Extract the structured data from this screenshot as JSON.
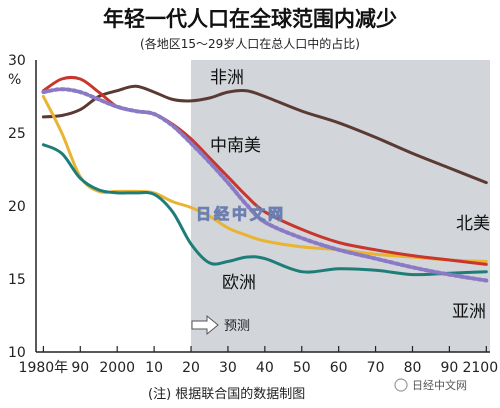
{
  "title": "年轻一代人口在全球范围内减少",
  "subtitle": "(各地区15～29岁人口在总人口中的占比)",
  "y_unit": "%",
  "note": "(注) 根据联合国的数据制图",
  "forecast_label": "预测",
  "watermark": "日经中文网",
  "source_badge": "日经中文网",
  "colors": {
    "africa": "#5a3a32",
    "latin_america": "#c8362c",
    "north_america": "#e8b431",
    "asia": "#8a79c4",
    "europe": "#1f7d78",
    "forecast_shade": "#d2d5da"
  },
  "chart_data": {
    "type": "line",
    "title": "年轻一代人口在全球范围内减少",
    "subtitle": "(各地区15～29岁人口在总人口中的占比)",
    "ylabel": "%",
    "xlim": [
      1978,
      2101
    ],
    "ylim": [
      10,
      30
    ],
    "x_ticks": [
      1980,
      1990,
      2000,
      2010,
      2020,
      2030,
      2040,
      2050,
      2060,
      2070,
      2080,
      2090,
      2100
    ],
    "x_tick_labels": [
      "1980年",
      "90",
      "2000",
      "10",
      "20",
      "30",
      "40",
      "50",
      "60",
      "70",
      "80",
      "90",
      "2100"
    ],
    "y_ticks": [
      10,
      15,
      20,
      25,
      30
    ],
    "forecast_start": 2020,
    "grid": false,
    "series": [
      {
        "name": "非洲",
        "color_key": "africa",
        "x": [
          1980,
          1985,
          1990,
          1995,
          2000,
          2005,
          2010,
          2015,
          2020,
          2025,
          2030,
          2035,
          2040,
          2050,
          2060,
          2070,
          2080,
          2090,
          2100
        ],
        "y": [
          26.1,
          26.2,
          26.6,
          27.5,
          27.9,
          28.2,
          27.8,
          27.3,
          27.2,
          27.4,
          27.8,
          27.9,
          27.5,
          26.5,
          25.7,
          24.7,
          23.6,
          22.6,
          21.6
        ]
      },
      {
        "name": "中南美",
        "color_key": "latin_america",
        "x": [
          1980,
          1985,
          1990,
          1995,
          2000,
          2005,
          2010,
          2015,
          2020,
          2025,
          2030,
          2035,
          2040,
          2050,
          2060,
          2070,
          2080,
          2090,
          2100
        ],
        "y": [
          27.9,
          28.7,
          28.7,
          27.8,
          26.8,
          26.5,
          26.3,
          25.6,
          24.6,
          23.3,
          22.0,
          20.7,
          19.6,
          18.4,
          17.5,
          17.0,
          16.6,
          16.3,
          16.0
        ]
      },
      {
        "name": "北美",
        "color_key": "north_america",
        "x": [
          1980,
          1985,
          1990,
          1995,
          2000,
          2005,
          2010,
          2015,
          2020,
          2025,
          2030,
          2035,
          2040,
          2050,
          2060,
          2070,
          2080,
          2090,
          2100
        ],
        "y": [
          27.5,
          25.0,
          22.0,
          21.0,
          21.0,
          21.0,
          20.9,
          20.3,
          19.9,
          19.3,
          18.5,
          18.0,
          17.6,
          17.2,
          17.0,
          16.7,
          16.5,
          16.3,
          16.2
        ]
      },
      {
        "name": "亚洲",
        "color_key": "asia",
        "x": [
          1980,
          1985,
          1990,
          1995,
          2000,
          2005,
          2010,
          2015,
          2020,
          2025,
          2030,
          2035,
          2040,
          2050,
          2060,
          2070,
          2080,
          2090,
          2100
        ],
        "y": [
          27.8,
          28.0,
          27.8,
          27.3,
          26.8,
          26.5,
          26.3,
          25.5,
          24.3,
          23.0,
          21.6,
          20.1,
          18.9,
          17.8,
          17.0,
          16.4,
          15.8,
          15.3,
          14.9
        ]
      },
      {
        "name": "欧洲",
        "color_key": "europe",
        "x": [
          1980,
          1985,
          1990,
          1995,
          2000,
          2005,
          2010,
          2015,
          2020,
          2025,
          2030,
          2035,
          2040,
          2050,
          2060,
          2070,
          2080,
          2090,
          2100
        ],
        "y": [
          24.2,
          23.6,
          21.9,
          21.1,
          20.9,
          20.9,
          20.8,
          19.6,
          17.4,
          16.1,
          16.2,
          16.5,
          16.4,
          15.5,
          15.7,
          15.6,
          15.3,
          15.4,
          15.5
        ]
      }
    ]
  }
}
